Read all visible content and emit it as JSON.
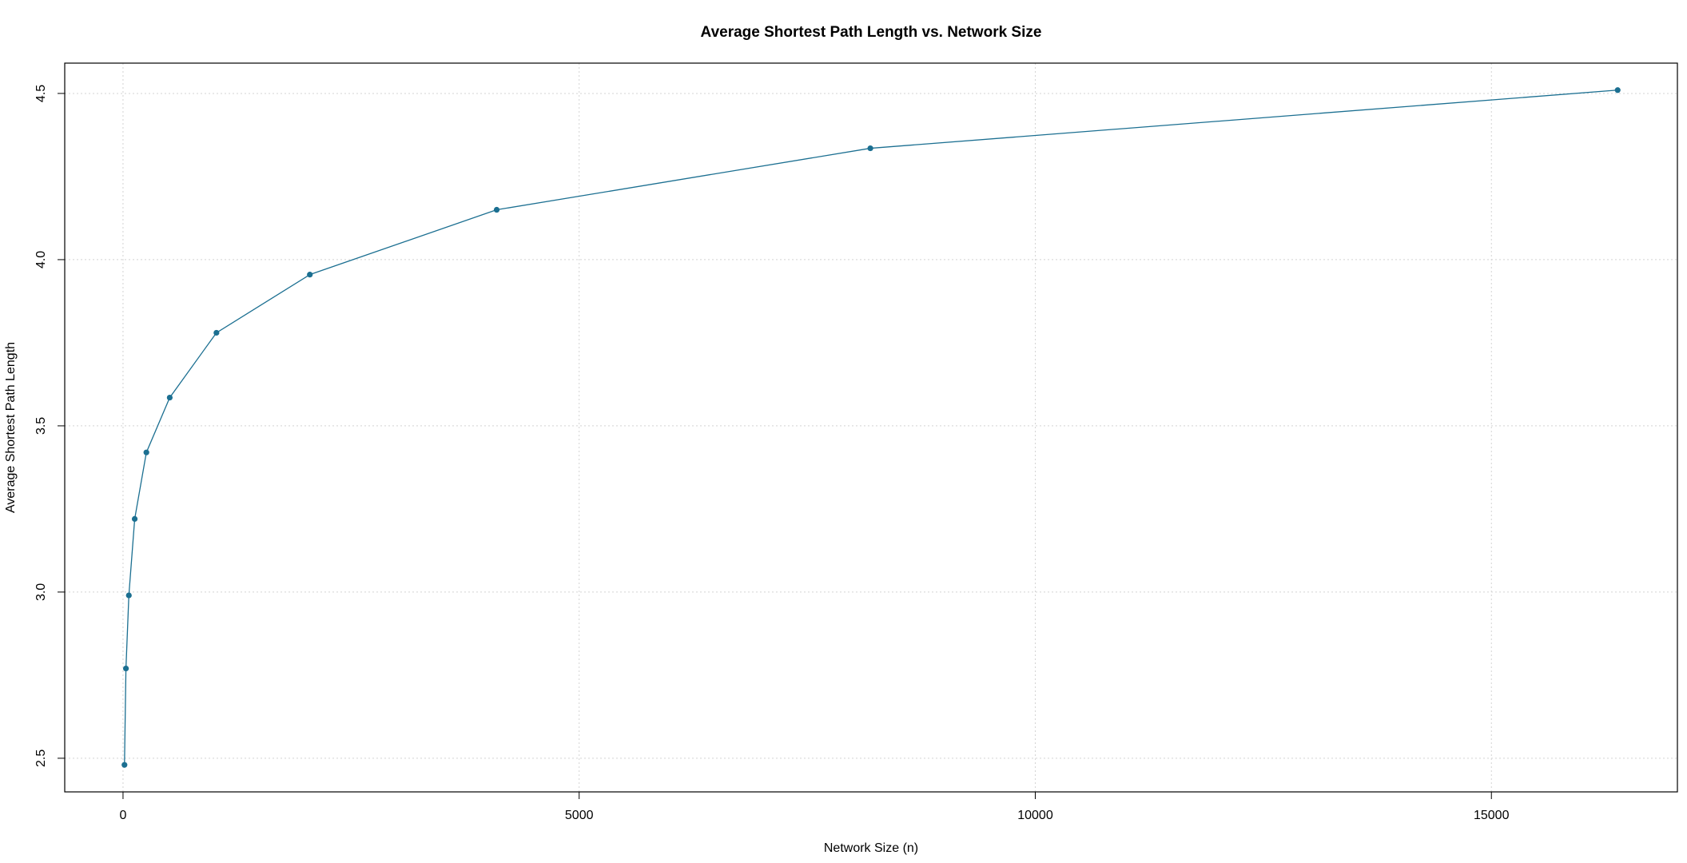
{
  "chart_data": {
    "type": "line",
    "title": "Average Shortest Path Length vs. Network Size",
    "xlabel": "Network Size (n)",
    "ylabel": "Average Shortest Path Length",
    "x": [
      16,
      32,
      64,
      128,
      256,
      512,
      1024,
      2048,
      4096,
      8192,
      16384
    ],
    "values": [
      2.48,
      2.77,
      2.99,
      3.22,
      3.42,
      3.585,
      3.78,
      3.955,
      4.15,
      4.335,
      4.51
    ],
    "color": "#1b6f91",
    "xlim": [
      -639,
      17039
    ],
    "ylim": [
      2.3988,
      4.5912
    ],
    "xticks": [
      0,
      5000,
      10000,
      15000
    ],
    "yticks": [
      2.5,
      {
        "value": 3,
        "label": "3.0"
      },
      3.5,
      {
        "value": 4,
        "label": "4.0"
      },
      4.5
    ],
    "grid": true
  }
}
